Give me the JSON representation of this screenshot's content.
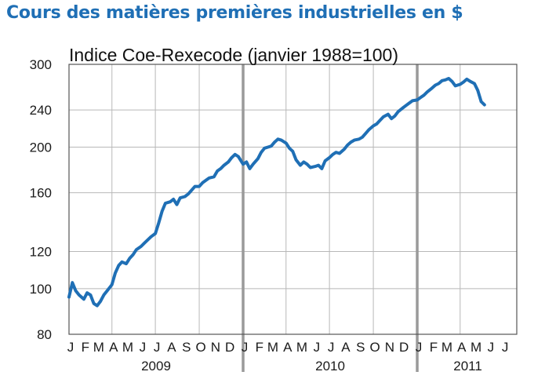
{
  "chart_data": {
    "type": "line",
    "title": "Cours des matières premières industrielles en $",
    "subtitle": "Indice Coe-Rexecode (janvier 1988=100)",
    "xlabel": "",
    "ylabel": "",
    "scale": "log",
    "ylim": [
      80,
      300
    ],
    "y_ticks": [
      80,
      100,
      120,
      160,
      200,
      240,
      300
    ],
    "x_ticks": [
      {
        "label": "J",
        "date": "2009-01"
      },
      {
        "label": "F",
        "date": "2009-02"
      },
      {
        "label": "M",
        "date": "2009-03"
      },
      {
        "label": "A",
        "date": "2009-04"
      },
      {
        "label": "M",
        "date": "2009-05"
      },
      {
        "label": "J",
        "date": "2009-06"
      },
      {
        "label": "J",
        "date": "2009-07"
      },
      {
        "label": "A",
        "date": "2009-08"
      },
      {
        "label": "S",
        "date": "2009-09"
      },
      {
        "label": "O",
        "date": "2009-10"
      },
      {
        "label": "N",
        "date": "2009-11"
      },
      {
        "label": "D",
        "date": "2009-12"
      },
      {
        "label": "J",
        "date": "2010-01"
      },
      {
        "label": "F",
        "date": "2010-02"
      },
      {
        "label": "M",
        "date": "2010-03"
      },
      {
        "label": "A",
        "date": "2010-04"
      },
      {
        "label": "M",
        "date": "2010-05"
      },
      {
        "label": "J",
        "date": "2010-06"
      },
      {
        "label": "J",
        "date": "2010-07"
      },
      {
        "label": "A",
        "date": "2010-08"
      },
      {
        "label": "S",
        "date": "2010-09"
      },
      {
        "label": "O",
        "date": "2010-10"
      },
      {
        "label": "N",
        "date": "2010-11"
      },
      {
        "label": "D",
        "date": "2010-12"
      },
      {
        "label": "J",
        "date": "2011-01"
      },
      {
        "label": "F",
        "date": "2011-02"
      },
      {
        "label": "M",
        "date": "2011-03"
      },
      {
        "label": "A",
        "date": "2011-04"
      },
      {
        "label": "M",
        "date": "2011-05"
      },
      {
        "label": "J",
        "date": "2011-06"
      },
      {
        "label": "J",
        "date": "2011-07"
      }
    ],
    "years": [
      {
        "label": "2009",
        "from": "2009-01",
        "to": "2010-01"
      },
      {
        "label": "2010",
        "from": "2010-01",
        "to": "2011-01"
      },
      {
        "label": "2011",
        "from": "2011-01",
        "to": "2011-08"
      }
    ],
    "grid": true,
    "colors": {
      "line": "#1f6fb5",
      "title": "#1f6fb5",
      "grid": "#b8b8b8",
      "frame": "#555555"
    },
    "series": [
      {
        "x": [
          "2009-01-01",
          "2009-01-08",
          "2009-01-15",
          "2009-01-22",
          "2009-02-01",
          "2009-02-08",
          "2009-02-15",
          "2009-02-22",
          "2009-03-01",
          "2009-03-08",
          "2009-03-15",
          "2009-03-22",
          "2009-04-01",
          "2009-04-08",
          "2009-04-15",
          "2009-04-22",
          "2009-05-01",
          "2009-05-08",
          "2009-05-15",
          "2009-05-22",
          "2009-06-01",
          "2009-06-08",
          "2009-06-15",
          "2009-06-22",
          "2009-07-01",
          "2009-07-08",
          "2009-07-15",
          "2009-07-22",
          "2009-08-01",
          "2009-08-08",
          "2009-08-15",
          "2009-08-22",
          "2009-09-01",
          "2009-09-08",
          "2009-09-15",
          "2009-09-22",
          "2009-10-01",
          "2009-10-08",
          "2009-10-15",
          "2009-10-22",
          "2009-11-01",
          "2009-11-08",
          "2009-11-15",
          "2009-11-22",
          "2009-12-01",
          "2009-12-08",
          "2009-12-15",
          "2009-12-22",
          "2010-01-01",
          "2010-01-08",
          "2010-01-15",
          "2010-01-22",
          "2010-02-01",
          "2010-02-08",
          "2010-02-15",
          "2010-02-22",
          "2010-03-01",
          "2010-03-08",
          "2010-03-15",
          "2010-03-22",
          "2010-04-01",
          "2010-04-08",
          "2010-04-15",
          "2010-04-22",
          "2010-05-01",
          "2010-05-08",
          "2010-05-15",
          "2010-05-22",
          "2010-06-01",
          "2010-06-08",
          "2010-06-15",
          "2010-06-22",
          "2010-07-01",
          "2010-07-08",
          "2010-07-15",
          "2010-07-22",
          "2010-08-01",
          "2010-08-08",
          "2010-08-15",
          "2010-08-22",
          "2010-09-01",
          "2010-09-08",
          "2010-09-15",
          "2010-09-22",
          "2010-10-01",
          "2010-10-08",
          "2010-10-15",
          "2010-10-22",
          "2010-11-01",
          "2010-11-08",
          "2010-11-15",
          "2010-11-22",
          "2010-12-01",
          "2010-12-08",
          "2010-12-15",
          "2010-12-22",
          "2011-01-01",
          "2011-01-08",
          "2011-01-15",
          "2011-01-22",
          "2011-02-01",
          "2011-02-08",
          "2011-02-15",
          "2011-02-22",
          "2011-03-01",
          "2011-03-08",
          "2011-03-15",
          "2011-03-22",
          "2011-04-01",
          "2011-04-08",
          "2011-04-15",
          "2011-04-22",
          "2011-05-01",
          "2011-05-08",
          "2011-05-15",
          "2011-05-22"
        ],
        "values": [
          96,
          103,
          99,
          97,
          95,
          98,
          97,
          93,
          92,
          94,
          97,
          99,
          102,
          108,
          112,
          114,
          113,
          116,
          118,
          121,
          123,
          125,
          127,
          129,
          131,
          138,
          146,
          152,
          153,
          155,
          151,
          156,
          157,
          159,
          162,
          165,
          165,
          168,
          170,
          172,
          173,
          178,
          180,
          183,
          186,
          190,
          193,
          191,
          184,
          186,
          180,
          184,
          189,
          195,
          199,
          200,
          201,
          205,
          208,
          207,
          204,
          199,
          196,
          188,
          183,
          186,
          184,
          181,
          182,
          183,
          180,
          187,
          190,
          193,
          195,
          194,
          198,
          202,
          205,
          207,
          208,
          210,
          214,
          218,
          222,
          224,
          228,
          232,
          235,
          230,
          233,
          238,
          242,
          245,
          248,
          251,
          252,
          255,
          258,
          262,
          267,
          271,
          273,
          277,
          278,
          280,
          276,
          270,
          272,
          275,
          279,
          276,
          273,
          264,
          250,
          246
        ]
      }
    ]
  }
}
